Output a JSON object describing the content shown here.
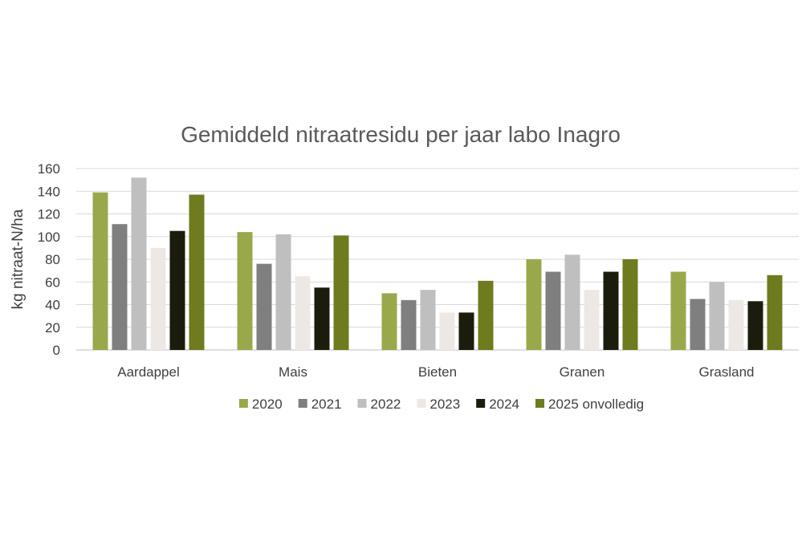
{
  "chart_data": {
    "type": "bar",
    "title": "Gemiddeld nitraatresidu per jaar labo Inagro",
    "xlabel": "",
    "ylabel": "kg nitraat-N/ha",
    "ylim": [
      0,
      160
    ],
    "yticks": [
      "0",
      "20",
      "40",
      "60",
      "80",
      "100",
      "120",
      "140",
      "160"
    ],
    "grid": true,
    "legend_position": "bottom",
    "categories": [
      "Aardappel",
      "Mais",
      "Bieten",
      "Granen",
      "Grasland"
    ],
    "series": [
      {
        "name": "2020",
        "color": "#9aa84c",
        "values": [
          139,
          104,
          50,
          80,
          69
        ]
      },
      {
        "name": "2021",
        "color": "#7f7f7f",
        "values": [
          111,
          76,
          44,
          69,
          45
        ]
      },
      {
        "name": "2022",
        "color": "#bfbfbf",
        "values": [
          152,
          102,
          53,
          84,
          60
        ]
      },
      {
        "name": "2023",
        "color": "#ede8e4",
        "values": [
          90,
          65,
          33,
          53,
          44
        ]
      },
      {
        "name": "2024",
        "color": "#1c1c0c",
        "values": [
          105,
          55,
          33,
          69,
          43
        ]
      },
      {
        "name": "2025 onvolledig",
        "color": "#6f7b1e",
        "values": [
          137,
          101,
          61,
          80,
          66
        ]
      }
    ]
  }
}
